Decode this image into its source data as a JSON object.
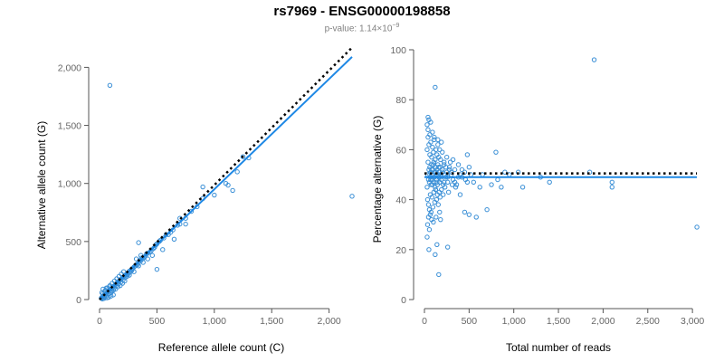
{
  "header": {
    "title": "rs7969 - ENSG00000198858",
    "pvalue_prefix": "p-value: 1.14×10",
    "pvalue_exp": "−9"
  },
  "colors": {
    "points": "#3a8fd6",
    "fit": "#1e88e5",
    "reference": "#000000"
  },
  "chart_data": [
    {
      "type": "scatter",
      "xlabel": "Reference allele count (C)",
      "ylabel": "Alternative allele count (G)",
      "xlim": [
        0,
        2200
      ],
      "ylim": [
        0,
        2050
      ],
      "xticks": [
        0,
        500,
        1000,
        1500,
        2000
      ],
      "xtick_labels": [
        "0",
        "500",
        "1,000",
        "1,500",
        "2,000"
      ],
      "yticks": [
        0,
        500,
        1000,
        1500,
        2000
      ],
      "ytick_labels": [
        "0",
        "500",
        "1,000",
        "1,500",
        "2,000"
      ],
      "grid": false,
      "fit_line": {
        "x": [
          0,
          2200
        ],
        "y": [
          0,
          2090
        ]
      },
      "reference_line": {
        "x": [
          0,
          2200
        ],
        "y": [
          0,
          2170
        ]
      },
      "points": [
        [
          15,
          12
        ],
        [
          20,
          18
        ],
        [
          25,
          22
        ],
        [
          30,
          28
        ],
        [
          35,
          30
        ],
        [
          40,
          38
        ],
        [
          45,
          40
        ],
        [
          50,
          46
        ],
        [
          55,
          52
        ],
        [
          60,
          55
        ],
        [
          65,
          60
        ],
        [
          70,
          66
        ],
        [
          75,
          70
        ],
        [
          80,
          76
        ],
        [
          85,
          80
        ],
        [
          90,
          85
        ],
        [
          100,
          92
        ],
        [
          110,
          100
        ],
        [
          120,
          112
        ],
        [
          130,
          120
        ],
        [
          140,
          132
        ],
        [
          150,
          140
        ],
        [
          160,
          150
        ],
        [
          170,
          160
        ],
        [
          180,
          168
        ],
        [
          190,
          178
        ],
        [
          200,
          190
        ],
        [
          210,
          196
        ],
        [
          220,
          205
        ],
        [
          230,
          215
        ],
        [
          240,
          222
        ],
        [
          250,
          230
        ],
        [
          260,
          245
        ],
        [
          275,
          255
        ],
        [
          290,
          270
        ],
        [
          300,
          280
        ],
        [
          320,
          300
        ],
        [
          340,
          320
        ],
        [
          360,
          335
        ],
        [
          380,
          355
        ],
        [
          400,
          375
        ],
        [
          420,
          400
        ],
        [
          450,
          420
        ],
        [
          480,
          450
        ],
        [
          500,
          480
        ],
        [
          530,
          510
        ],
        [
          560,
          530
        ],
        [
          600,
          560
        ],
        [
          640,
          600
        ],
        [
          700,
          650
        ],
        [
          750,
          700
        ],
        [
          800,
          760
        ],
        [
          850,
          800
        ],
        [
          900,
          870
        ],
        [
          1000,
          900
        ],
        [
          1100,
          1000
        ],
        [
          1200,
          1100
        ],
        [
          1300,
          1220
        ],
        [
          30,
          50
        ],
        [
          40,
          20
        ],
        [
          50,
          80
        ],
        [
          60,
          30
        ],
        [
          70,
          100
        ],
        [
          80,
          50
        ],
        [
          90,
          120
        ],
        [
          100,
          60
        ],
        [
          110,
          140
        ],
        [
          120,
          80
        ],
        [
          130,
          160
        ],
        [
          140,
          90
        ],
        [
          150,
          180
        ],
        [
          160,
          110
        ],
        [
          170,
          200
        ],
        [
          180,
          120
        ],
        [
          190,
          220
        ],
        [
          200,
          140
        ],
        [
          210,
          240
        ],
        [
          220,
          160
        ],
        [
          240,
          200
        ],
        [
          260,
          210
        ],
        [
          280,
          250
        ],
        [
          300,
          240
        ],
        [
          320,
          350
        ],
        [
          340,
          290
        ],
        [
          360,
          380
        ],
        [
          380,
          320
        ],
        [
          420,
          350
        ],
        [
          460,
          380
        ],
        [
          500,
          260
        ],
        [
          550,
          430
        ],
        [
          650,
          520
        ],
        [
          700,
          700
        ],
        [
          750,
          650
        ],
        [
          340,
          490
        ],
        [
          900,
          970
        ],
        [
          1120,
          985
        ],
        [
          1160,
          940
        ],
        [
          1250,
          1230
        ],
        [
          90,
          1845
        ],
        [
          2200,
          890
        ],
        [
          20,
          60
        ],
        [
          30,
          90
        ],
        [
          40,
          10
        ],
        [
          60,
          100
        ],
        [
          80,
          20
        ],
        [
          100,
          30
        ],
        [
          120,
          40
        ],
        [
          25,
          5
        ],
        [
          45,
          70
        ],
        [
          65,
          15
        ],
        [
          85,
          110
        ],
        [
          105,
          75
        ],
        [
          125,
          95
        ],
        [
          145,
          120
        ],
        [
          165,
          135
        ],
        [
          185,
          150
        ],
        [
          205,
          170
        ],
        [
          225,
          190
        ],
        [
          245,
          215
        ],
        [
          265,
          235
        ],
        [
          285,
          260
        ],
        [
          310,
          290
        ],
        [
          330,
          300
        ],
        [
          350,
          340
        ],
        [
          370,
          360
        ],
        [
          390,
          365
        ],
        [
          410,
          395
        ],
        [
          440,
          410
        ],
        [
          470,
          440
        ],
        [
          490,
          470
        ],
        [
          520,
          500
        ],
        [
          580,
          560
        ],
        [
          620,
          580
        ],
        [
          680,
          640
        ]
      ]
    },
    {
      "type": "scatter",
      "xlabel": "Total number of reads",
      "ylabel": "Percentage alternative (G)",
      "xlim": [
        0,
        3100
      ],
      "ylim": [
        0,
        100
      ],
      "xticks": [
        0,
        500,
        1000,
        1500,
        2000,
        2500,
        3000
      ],
      "xtick_labels": [
        "0",
        "500",
        "1,000",
        "1,500",
        "2,000",
        "2,500",
        "3,000"
      ],
      "yticks": [
        0,
        20,
        40,
        60,
        80,
        100
      ],
      "ytick_labels": [
        "0",
        "20",
        "40",
        "60",
        "80",
        "100"
      ],
      "grid": false,
      "fit_line": {
        "x": [
          0,
          3050
        ],
        "y": [
          49,
          49
        ]
      },
      "reference_line": {
        "x": [
          0,
          3050
        ],
        "y": [
          50.5,
          50.5
        ]
      },
      "points": [
        [
          30,
          45
        ],
        [
          35,
          50
        ],
        [
          40,
          55
        ],
        [
          45,
          48
        ],
        [
          50,
          52
        ],
        [
          55,
          47
        ],
        [
          60,
          53
        ],
        [
          65,
          49
        ],
        [
          70,
          51
        ],
        [
          75,
          46
        ],
        [
          80,
          54
        ],
        [
          85,
          50
        ],
        [
          90,
          48
        ],
        [
          95,
          52
        ],
        [
          100,
          47
        ],
        [
          105,
          55
        ],
        [
          110,
          49
        ],
        [
          115,
          51
        ],
        [
          120,
          45
        ],
        [
          125,
          53
        ],
        [
          130,
          50
        ],
        [
          135,
          48
        ],
        [
          140,
          52
        ],
        [
          145,
          46
        ],
        [
          150,
          54
        ],
        [
          155,
          50
        ],
        [
          160,
          49
        ],
        [
          165,
          51
        ],
        [
          170,
          47
        ],
        [
          175,
          53
        ],
        [
          180,
          50
        ],
        [
          190,
          48
        ],
        [
          200,
          52
        ],
        [
          210,
          46
        ],
        [
          220,
          54
        ],
        [
          230,
          50
        ],
        [
          240,
          49
        ],
        [
          250,
          51
        ],
        [
          260,
          47
        ],
        [
          280,
          53
        ],
        [
          300,
          50
        ],
        [
          320,
          48
        ],
        [
          340,
          52
        ],
        [
          360,
          46
        ],
        [
          380,
          54
        ],
        [
          400,
          50
        ],
        [
          420,
          49
        ],
        [
          450,
          51
        ],
        [
          480,
          47
        ],
        [
          500,
          53
        ],
        [
          30,
          60
        ],
        [
          35,
          40
        ],
        [
          40,
          65
        ],
        [
          45,
          38
        ],
        [
          50,
          62
        ],
        [
          55,
          36
        ],
        [
          60,
          58
        ],
        [
          65,
          42
        ],
        [
          70,
          63
        ],
        [
          75,
          35
        ],
        [
          80,
          57
        ],
        [
          85,
          41
        ],
        [
          90,
          61
        ],
        [
          95,
          37
        ],
        [
          100,
          59
        ],
        [
          105,
          43
        ],
        [
          110,
          64
        ],
        [
          115,
          39
        ],
        [
          120,
          56
        ],
        [
          125,
          44
        ],
        [
          130,
          60
        ],
        [
          135,
          40
        ],
        [
          140,
          58
        ],
        [
          145,
          42
        ],
        [
          150,
          62
        ],
        [
          155,
          38
        ],
        [
          160,
          57
        ],
        [
          165,
          43
        ],
        [
          170,
          60
        ],
        [
          175,
          41
        ],
        [
          180,
          56
        ],
        [
          190,
          44
        ],
        [
          200,
          59
        ],
        [
          210,
          42
        ],
        [
          220,
          55
        ],
        [
          230,
          45
        ],
        [
          250,
          57
        ],
        [
          270,
          43
        ],
        [
          290,
          55
        ],
        [
          310,
          46
        ],
        [
          30,
          70
        ],
        [
          35,
          30
        ],
        [
          40,
          68
        ],
        [
          45,
          33
        ],
        [
          50,
          72
        ],
        [
          55,
          28
        ],
        [
          60,
          66
        ],
        [
          65,
          34
        ],
        [
          70,
          71
        ],
        [
          80,
          32
        ],
        [
          90,
          67
        ],
        [
          100,
          31
        ],
        [
          110,
          65
        ],
        [
          130,
          33
        ],
        [
          150,
          64
        ],
        [
          170,
          35
        ],
        [
          190,
          63
        ],
        [
          30,
          25
        ],
        [
          40,
          73
        ],
        [
          50,
          20
        ],
        [
          120,
          85
        ],
        [
          120,
          18
        ],
        [
          140,
          22
        ],
        [
          160,
          10
        ],
        [
          180,
          32
        ],
        [
          260,
          21
        ],
        [
          280,
          52
        ],
        [
          320,
          56
        ],
        [
          350,
          45
        ],
        [
          400,
          42
        ],
        [
          450,
          35
        ],
        [
          480,
          58
        ],
        [
          500,
          34
        ],
        [
          550,
          47
        ],
        [
          580,
          33
        ],
        [
          620,
          45
        ],
        [
          650,
          50
        ],
        [
          700,
          36
        ],
        [
          750,
          46
        ],
        [
          800,
          59
        ],
        [
          820,
          48
        ],
        [
          860,
          45
        ],
        [
          900,
          51
        ],
        [
          950,
          50
        ],
        [
          1050,
          51
        ],
        [
          1100,
          45
        ],
        [
          1300,
          49
        ],
        [
          1400,
          47
        ],
        [
          1850,
          51
        ],
        [
          1900,
          96
        ],
        [
          2100,
          45
        ],
        [
          2100,
          47
        ],
        [
          3050,
          29
        ],
        [
          60,
          50
        ],
        [
          70,
          48
        ],
        [
          80,
          52
        ],
        [
          90,
          46
        ],
        [
          100,
          54
        ],
        [
          110,
          49
        ],
        [
          130,
          51
        ],
        [
          140,
          47
        ],
        [
          160,
          53
        ],
        [
          180,
          49
        ],
        [
          200,
          51
        ],
        [
          220,
          47
        ],
        [
          240,
          53
        ],
        [
          260,
          49
        ],
        [
          300,
          51
        ],
        [
          340,
          47
        ],
        [
          380,
          49
        ],
        [
          420,
          52
        ],
        [
          460,
          48
        ],
        [
          520,
          50
        ]
      ]
    }
  ]
}
